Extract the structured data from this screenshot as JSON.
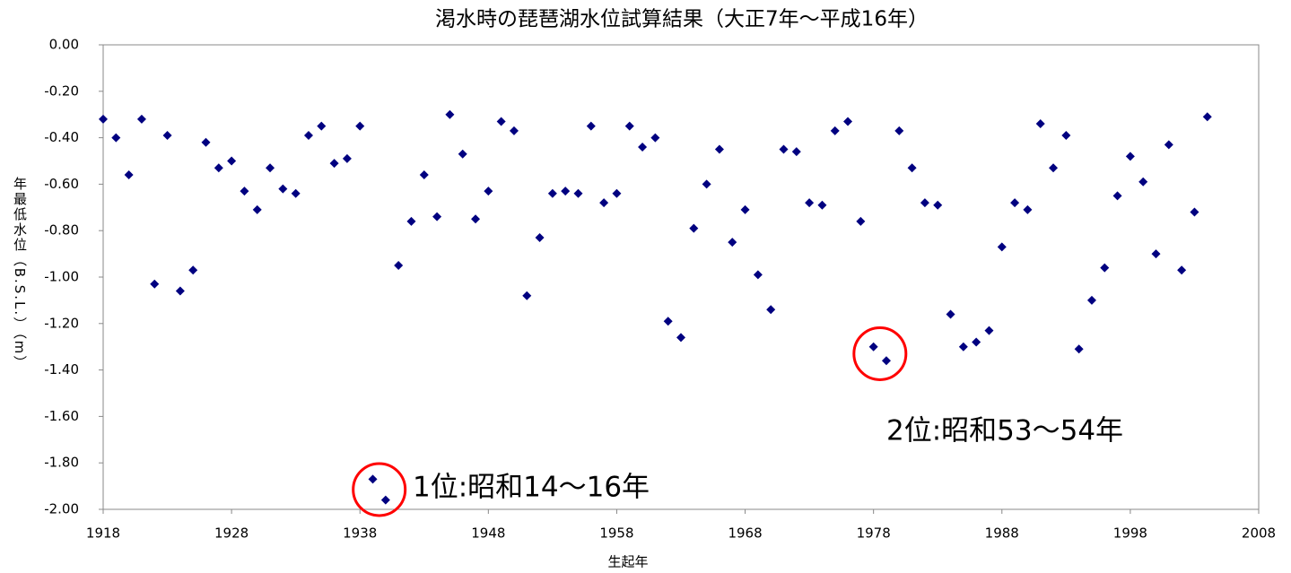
{
  "chart_data": {
    "type": "scatter",
    "title": "渇水時の琵琶湖水位試算結果（大正7年～平成16年）",
    "xlabel": "生起年",
    "ylabel": "年最低水位（B.S.L.）（m）",
    "series": [
      {
        "color": "#000080",
        "x": [
          1918,
          1919,
          1920,
          1921,
          1922,
          1923,
          1924,
          1925,
          1926,
          1927,
          1928,
          1929,
          1930,
          1931,
          1932,
          1933,
          1934,
          1935,
          1936,
          1937,
          1938,
          1939,
          1940,
          1941,
          1942,
          1943,
          1944,
          1945,
          1946,
          1947,
          1948,
          1949,
          1950,
          1951,
          1952,
          1953,
          1954,
          1955,
          1956,
          1957,
          1958,
          1959,
          1960,
          1961,
          1962,
          1963,
          1964,
          1965,
          1966,
          1967,
          1968,
          1969,
          1970,
          1971,
          1972,
          1973,
          1974,
          1975,
          1976,
          1977,
          1978,
          1979,
          1980,
          1981,
          1982,
          1983,
          1984,
          1985,
          1986,
          1987,
          1988,
          1989,
          1990,
          1991,
          1992,
          1993,
          1994,
          1995,
          1996,
          1997,
          1998,
          1999,
          2000,
          2001,
          2002,
          2003,
          2004
        ],
        "values": [
          -0.32,
          -0.4,
          -0.56,
          -0.32,
          -1.03,
          -0.39,
          -1.06,
          -0.97,
          -0.42,
          -0.53,
          -0.5,
          -0.63,
          -0.71,
          -0.53,
          -0.62,
          -0.64,
          -0.39,
          -0.35,
          -0.51,
          -0.49,
          -0.35,
          -1.87,
          -1.96,
          -0.95,
          -0.76,
          -0.56,
          -0.74,
          -0.3,
          -0.47,
          -0.75,
          -0.63,
          -0.33,
          -0.37,
          -1.08,
          -0.83,
          -0.64,
          -0.63,
          -0.64,
          -0.35,
          -0.68,
          -0.64,
          -0.35,
          -0.44,
          -0.4,
          -1.19,
          -1.26,
          -0.79,
          -0.6,
          -0.45,
          -0.85,
          -0.71,
          -0.99,
          -1.14,
          -0.45,
          -0.46,
          -0.68,
          -0.69,
          -0.37,
          -0.33,
          -0.76,
          -1.3,
          -1.36,
          -0.37,
          -0.53,
          -0.68,
          -0.69,
          -1.16,
          -1.3,
          -1.28,
          -1.23,
          -0.87,
          -0.68,
          -0.71,
          -0.34,
          -0.53,
          -0.39,
          -1.31,
          -1.1,
          -0.96,
          -0.65,
          -0.48,
          -0.59,
          -0.9,
          -0.43,
          -0.97,
          -0.72,
          -0.31
        ]
      }
    ],
    "xlim": [
      1918,
      2008
    ],
    "xticks": [
      1918,
      1928,
      1938,
      1948,
      1958,
      1968,
      1978,
      1988,
      1998,
      2008
    ],
    "ylim": [
      -2,
      0
    ],
    "yticks": [
      {
        "value": -2,
        "label": "-2.00"
      },
      {
        "value": -1.8,
        "label": "-1.80"
      },
      {
        "value": -1.6,
        "label": "-1.60"
      },
      {
        "value": -1.4,
        "label": "-1.40"
      },
      {
        "value": -1.2,
        "label": "-1.20"
      },
      {
        "value": -1,
        "label": "-1.00"
      },
      {
        "value": -0.8,
        "label": "-0.80"
      },
      {
        "value": -0.6,
        "label": "-0.60"
      },
      {
        "value": -0.4,
        "label": "-0.40"
      },
      {
        "value": -0.2,
        "label": "-0.20"
      },
      {
        "value": 0,
        "label": "0.00"
      }
    ],
    "annotations": [
      {
        "text": "1位:昭和14～16年",
        "color": "#ff0000"
      },
      {
        "text": "2位:昭和53～54年",
        "color": "#ff0000"
      }
    ]
  }
}
